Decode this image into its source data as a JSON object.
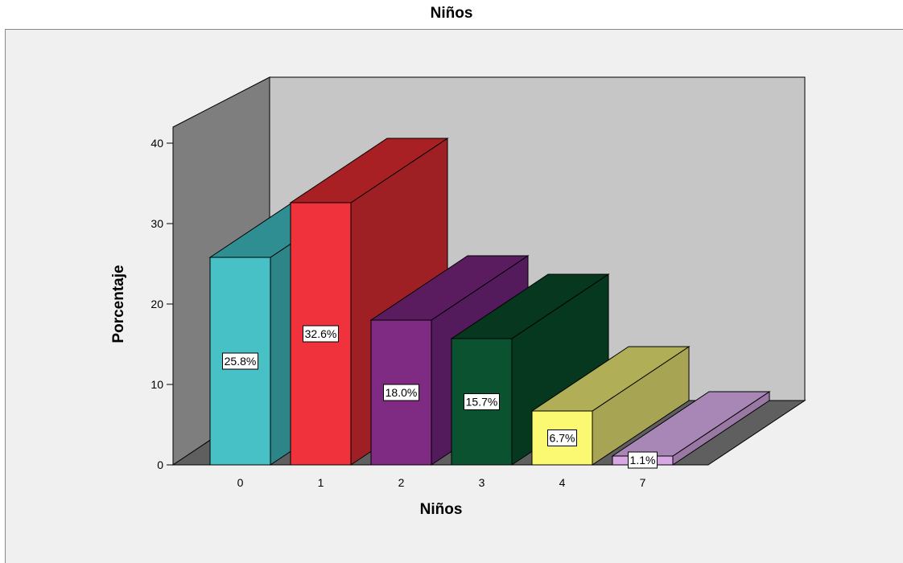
{
  "chart_data": {
    "type": "bar",
    "style": "3d",
    "title": "Niños",
    "xlabel": "Niños",
    "ylabel": "Porcentaje",
    "ylim": [
      0,
      40
    ],
    "yticks": [
      "0",
      "10",
      "20",
      "30",
      "40"
    ],
    "categories": [
      "0",
      "1",
      "2",
      "3",
      "4",
      "7"
    ],
    "values": [
      25.8,
      32.6,
      18.0,
      15.7,
      6.7,
      1.1
    ],
    "data_labels": [
      "25.8%",
      "32.6%",
      "18.0%",
      "15.7%",
      "6.7%",
      "1.1%"
    ],
    "colors": [
      "#47c1c6",
      "#ef323c",
      "#7f2a83",
      "#0b5230",
      "#fbf872",
      "#d8a8e4"
    ],
    "side_colors": [
      "#2d8588",
      "#9f2024",
      "#541b5c",
      "#063820",
      "#a7a454",
      "#9a78a4"
    ],
    "top_colors": [
      "#2f8e91",
      "#a81f24",
      "#5a1c5e",
      "#07381f",
      "#b0ae57",
      "#a887b6"
    ],
    "wall_color": "#c6c6c6",
    "side_wall_color": "#7e7e7e",
    "floor_color": "#5f5f5f",
    "background": "#f0f0f0"
  }
}
